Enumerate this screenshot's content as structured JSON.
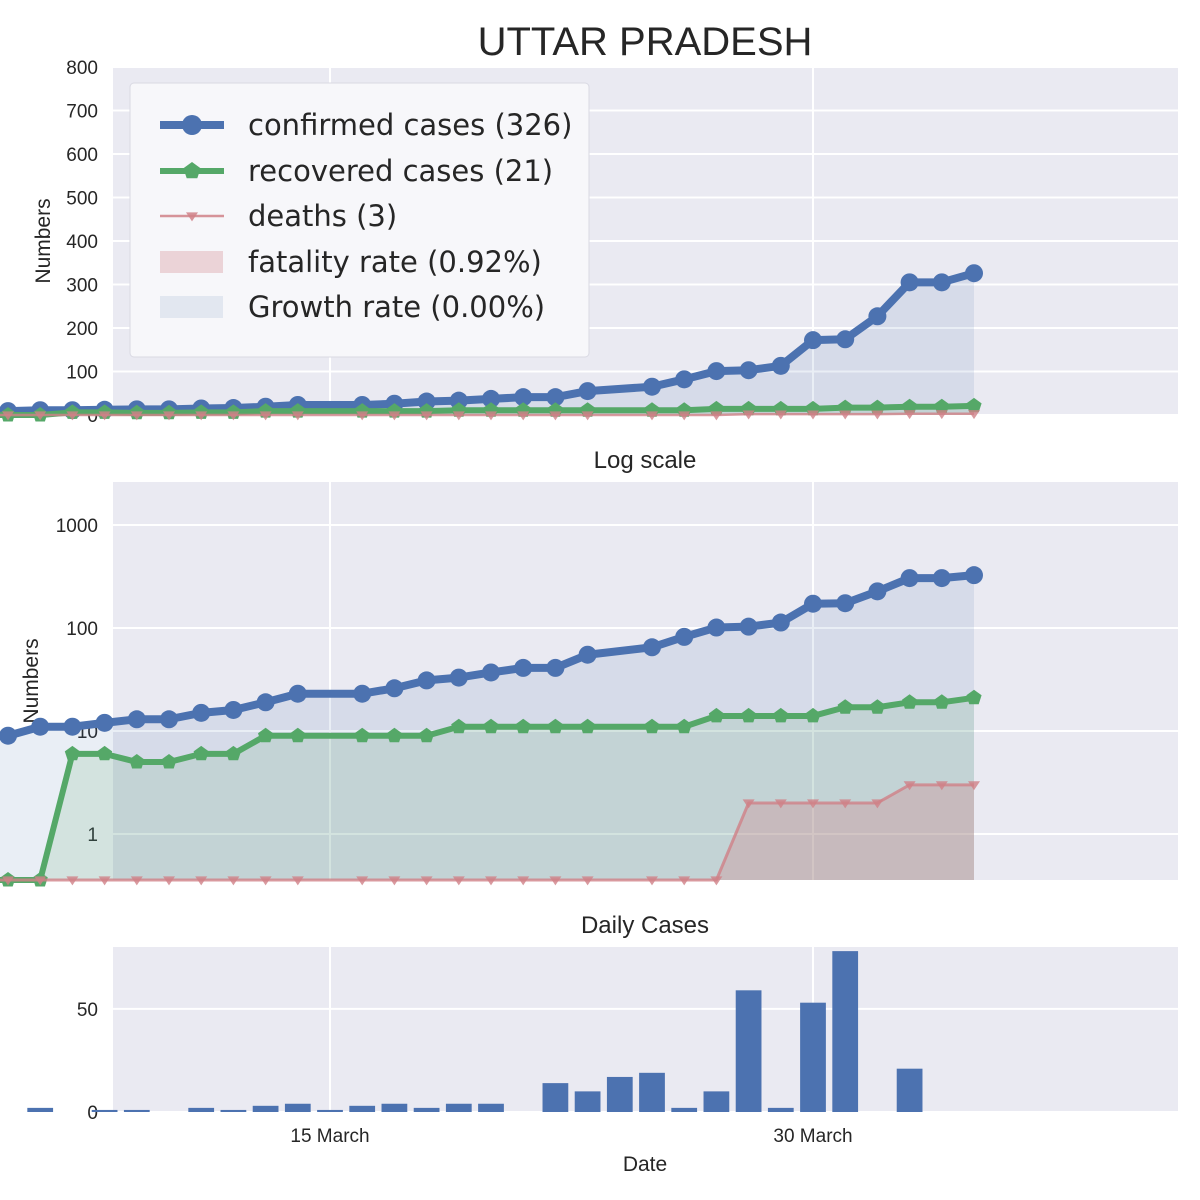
{
  "title": "UTTAR PRADESH",
  "colors": {
    "confirmed": "#4c72b0",
    "recovered": "#55a868",
    "deaths": "#d08187",
    "plot_bg": "#eaeaf2",
    "grid": "#ffffff"
  },
  "chart_data": [
    {
      "type": "line",
      "title": "",
      "xlabel": "",
      "ylabel": "Numbers",
      "ylim": [
        0,
        800
      ],
      "yticks": [
        0,
        100,
        200,
        300,
        400,
        500,
        600,
        700,
        800
      ],
      "grid": true,
      "legend_placement": "top-left",
      "legend": [
        {
          "label": "confirmed cases (326)",
          "kind": "line-circle",
          "series": "confirmed"
        },
        {
          "label": "recovered cases (21)",
          "kind": "line-pentagon",
          "series": "recovered"
        },
        {
          "label": "deaths (3)",
          "kind": "line-triangle",
          "series": "deaths"
        },
        {
          "label": "fatality rate (0.92%)",
          "kind": "patch",
          "series": "deaths"
        },
        {
          "label": "Growth rate (0.00%)",
          "kind": "patch",
          "series": "confirmed"
        }
      ]
    },
    {
      "type": "line",
      "title": "Log scale",
      "xlabel": "",
      "ylabel": "Numbers",
      "yscale": "log",
      "yticks": [
        1,
        10,
        100,
        1000
      ],
      "ytick_labels": [
        "1",
        "10",
        "100",
        "1000"
      ],
      "grid": true
    },
    {
      "type": "bar",
      "title": "Daily Cases",
      "xlabel": "Date",
      "ylabel": "",
      "ylim": [
        0,
        80
      ],
      "yticks": [
        0,
        50
      ],
      "xtick_labels": [
        {
          "label": "15 March",
          "x": "2020-03-15"
        },
        {
          "label": "30 March",
          "x": "2020-03-30"
        }
      ],
      "grid": true
    }
  ],
  "series": {
    "dates": [
      "2020-03-04",
      "2020-03-05",
      "2020-03-06",
      "2020-03-07",
      "2020-03-08",
      "2020-03-09",
      "2020-03-10",
      "2020-03-11",
      "2020-03-12",
      "2020-03-13",
      "2020-03-14",
      "2020-03-15",
      "2020-03-16",
      "2020-03-17",
      "2020-03-18",
      "2020-03-19",
      "2020-03-20",
      "2020-03-21",
      "2020-03-22",
      "2020-03-23",
      "2020-03-24",
      "2020-03-25",
      "2020-03-26",
      "2020-03-27",
      "2020-03-28",
      "2020-03-29",
      "2020-03-30",
      "2020-03-31",
      "2020-04-01",
      "2020-04-02",
      "2020-04-03",
      "2020-04-04",
      "2020-04-05",
      "2020-04-06",
      "2020-04-07",
      "2020-04-08",
      "2020-04-09",
      "2020-04-10",
      "2020-04-11",
      "2020-04-12",
      "2020-04-13",
      "2020-04-14",
      "2020-04-15"
    ],
    "confirmed": [
      9,
      9,
      11,
      11,
      12,
      13,
      13,
      15,
      16,
      19,
      23,
      23,
      26,
      31,
      33,
      37,
      41,
      41,
      55,
      65,
      82,
      101,
      103,
      113,
      172,
      174,
      227,
      305,
      305,
      326
    ],
    "recovered": [
      0,
      0,
      0,
      6,
      6,
      5,
      5,
      6,
      6,
      9,
      9,
      9,
      9,
      9,
      11,
      11,
      11,
      11,
      11,
      11,
      11,
      14,
      14,
      14,
      14,
      17,
      17,
      19,
      19,
      21
    ],
    "deaths": [
      0,
      0,
      0,
      0,
      0,
      0,
      0,
      0,
      0,
      0,
      0,
      0,
      0,
      0,
      0,
      0,
      0,
      0,
      0,
      0,
      0,
      0,
      2,
      2,
      2,
      2,
      2,
      3,
      3,
      3
    ],
    "point_dates": [
      "2020-03-04",
      "2020-03-05",
      "2020-03-06",
      "2020-03-07",
      "2020-03-08",
      "2020-03-09",
      "2020-03-10",
      "2020-03-11",
      "2020-03-12",
      "2020-03-13",
      "2020-03-14",
      "2020-03-16",
      "2020-03-17",
      "2020-03-18",
      "2020-03-19",
      "2020-03-20",
      "2020-03-21",
      "2020-03-22",
      "2020-03-23",
      "2020-03-25",
      "2020-03-26",
      "2020-03-27",
      "2020-03-28",
      "2020-03-29",
      "2020-03-30",
      "2020-03-31",
      "2020-04-01",
      "2020-04-02",
      "2020-04-03",
      "2020-04-04"
    ],
    "daily": [
      {
        "date": "2020-03-04",
        "value": 0
      },
      {
        "date": "2020-03-06",
        "value": 2
      },
      {
        "date": "2020-03-08",
        "value": 1
      },
      {
        "date": "2020-03-09",
        "value": 1
      },
      {
        "date": "2020-03-11",
        "value": 2
      },
      {
        "date": "2020-03-12",
        "value": 1
      },
      {
        "date": "2020-03-13",
        "value": 3
      },
      {
        "date": "2020-03-14",
        "value": 4
      },
      {
        "date": "2020-03-15",
        "value": 1
      },
      {
        "date": "2020-03-16",
        "value": 3
      },
      {
        "date": "2020-03-17",
        "value": 4
      },
      {
        "date": "2020-03-18",
        "value": 2
      },
      {
        "date": "2020-03-19",
        "value": 4
      },
      {
        "date": "2020-03-20",
        "value": 4
      },
      {
        "date": "2020-03-22",
        "value": 14
      },
      {
        "date": "2020-03-23",
        "value": 10
      },
      {
        "date": "2020-03-24",
        "value": 17
      },
      {
        "date": "2020-03-25",
        "value": 19
      },
      {
        "date": "2020-03-26",
        "value": 2
      },
      {
        "date": "2020-03-27",
        "value": 10
      },
      {
        "date": "2020-03-28",
        "value": 59
      },
      {
        "date": "2020-03-29",
        "value": 2
      },
      {
        "date": "2020-03-30",
        "value": 53
      },
      {
        "date": "2020-03-31",
        "value": 78
      },
      {
        "date": "2020-04-02",
        "value": 21
      }
    ]
  }
}
